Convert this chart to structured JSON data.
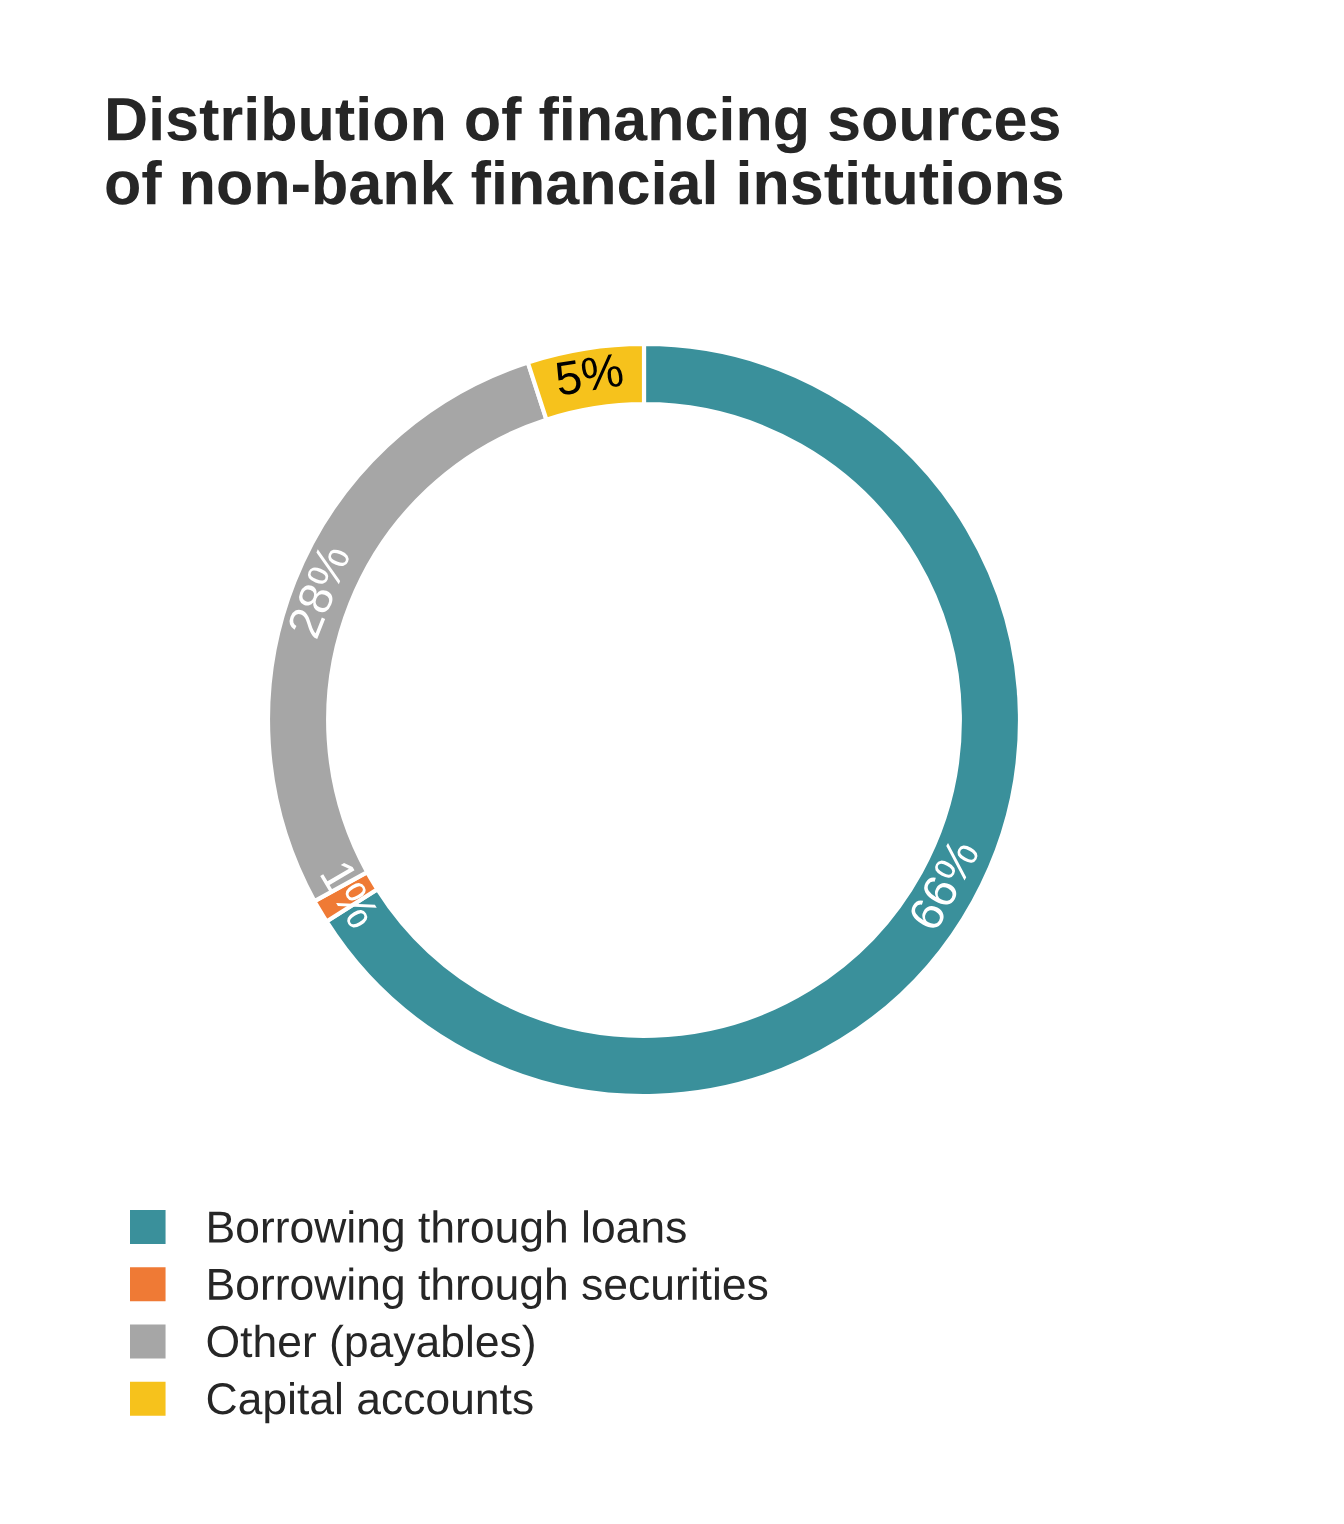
{
  "chart_data": {
    "type": "donut",
    "title": "Distribution of financing sources\nof non-bank financial institutions",
    "categories": [
      "Borrowing through loans",
      "Borrowing through securities",
      "Other (payables)",
      "Capital accounts"
    ],
    "values": [
      66,
      1,
      28,
      5
    ],
    "colors": [
      "#3a909b",
      "#ef7a35",
      "#a6a6a6",
      "#f6c21c"
    ],
    "value_labels": [
      "66%",
      "1%",
      "28%",
      "5%"
    ],
    "legend": "bottom left"
  }
}
